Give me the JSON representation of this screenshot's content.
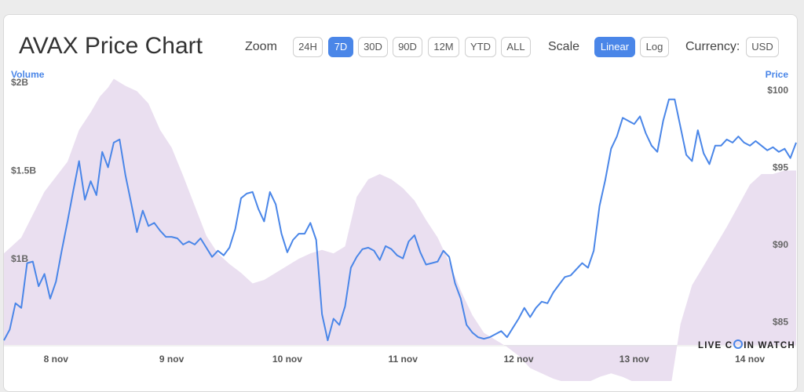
{
  "header": {
    "title": "AVAX Price Chart",
    "zoom_label": "Zoom",
    "zoom_options": [
      "24H",
      "7D",
      "30D",
      "90D",
      "12M",
      "YTD",
      "ALL"
    ],
    "zoom_selected": "7D",
    "scale_label": "Scale",
    "scale_options": [
      "Linear",
      "Log"
    ],
    "scale_selected": "Linear",
    "currency_label": "Currency:",
    "currency_value": "USD"
  },
  "watermark": {
    "before": "LIVE C",
    "after": "IN WATCH"
  },
  "colors": {
    "price_line": "#4a86e8",
    "volume_area": "#eadff0",
    "axis_title": "#4a86e8"
  },
  "chart_data": {
    "type": "line",
    "x_ticks": [
      "8 nov",
      "9 nov",
      "10 nov",
      "11 nov",
      "12 nov",
      "13 nov",
      "14 nov"
    ],
    "y_left": {
      "title": "Volume",
      "ticks": [
        "$2B",
        "$1.5B",
        "$1B"
      ],
      "tick_values": [
        2000000000,
        1500000000,
        1000000000
      ]
    },
    "y_right": {
      "title": "Price",
      "ticks": [
        "$100",
        "$95",
        "$90",
        "$85"
      ],
      "tick_values": [
        100,
        95,
        90,
        85
      ],
      "range": [
        83.5,
        100.5
      ]
    },
    "x_range": [
      -0.45,
      6.4
    ],
    "series": [
      {
        "series_type": "area",
        "axis": "left",
        "x": [
          -0.45,
          -0.3,
          -0.1,
          0.1,
          0.2,
          0.3,
          0.38,
          0.45,
          0.5,
          0.6,
          0.7,
          0.8,
          0.9,
          1.0,
          1.1,
          1.2,
          1.3,
          1.4,
          1.5,
          1.6,
          1.7,
          1.8,
          1.9,
          2.0,
          2.1,
          2.2,
          2.3,
          2.4,
          2.5,
          2.6,
          2.7,
          2.8,
          2.9,
          3.0,
          3.1,
          3.2,
          3.3,
          3.4,
          3.5,
          3.6,
          3.7,
          3.8,
          3.9,
          4.0,
          4.1,
          4.2,
          4.3,
          4.4,
          4.5,
          4.6,
          4.7,
          4.8,
          4.9,
          5.0,
          5.1,
          5.2,
          5.3,
          5.4,
          5.5,
          5.6,
          5.7,
          5.8,
          5.9,
          6.0,
          6.1,
          6.2,
          6.3,
          6.4
        ],
        "y": [
          1.03,
          1.12,
          1.38,
          1.55,
          1.73,
          1.83,
          1.92,
          1.97,
          2.02,
          1.98,
          1.95,
          1.88,
          1.73,
          1.63,
          1.47,
          1.3,
          1.13,
          1.03,
          0.97,
          0.92,
          0.86,
          0.88,
          0.92,
          0.96,
          1.0,
          1.03,
          1.05,
          1.03,
          1.07,
          1.35,
          1.45,
          1.48,
          1.45,
          1.4,
          1.33,
          1.22,
          1.12,
          0.98,
          0.82,
          0.68,
          0.58,
          0.54,
          0.5,
          0.45,
          0.38,
          0.35,
          0.32,
          0.3,
          0.3,
          0.3,
          0.33,
          0.35,
          0.33,
          0.3,
          0.25,
          0.22,
          0.21,
          0.63,
          0.85,
          0.96,
          1.07,
          1.18,
          1.3,
          1.42,
          1.48,
          1.48,
          1.5,
          1.5
        ]
      },
      {
        "series_type": "line",
        "axis": "right",
        "name": "Price",
        "x": [
          -0.45,
          -0.4,
          -0.35,
          -0.3,
          -0.25,
          -0.2,
          -0.15,
          -0.1,
          -0.05,
          0.0,
          0.05,
          0.1,
          0.15,
          0.2,
          0.25,
          0.3,
          0.35,
          0.4,
          0.45,
          0.5,
          0.55,
          0.6,
          0.65,
          0.7,
          0.75,
          0.8,
          0.85,
          0.9,
          0.95,
          1.0,
          1.05,
          1.1,
          1.15,
          1.2,
          1.25,
          1.3,
          1.35,
          1.4,
          1.45,
          1.5,
          1.55,
          1.6,
          1.65,
          1.7,
          1.75,
          1.8,
          1.85,
          1.9,
          1.95,
          2.0,
          2.05,
          2.1,
          2.15,
          2.2,
          2.25,
          2.3,
          2.35,
          2.4,
          2.45,
          2.5,
          2.55,
          2.6,
          2.65,
          2.7,
          2.75,
          2.8,
          2.85,
          2.9,
          2.95,
          3.0,
          3.05,
          3.1,
          3.15,
          3.2,
          3.25,
          3.3,
          3.35,
          3.4,
          3.45,
          3.5,
          3.55,
          3.6,
          3.65,
          3.7,
          3.75,
          3.8,
          3.85,
          3.9,
          3.95,
          4.0,
          4.05,
          4.1,
          4.15,
          4.2,
          4.25,
          4.3,
          4.35,
          4.4,
          4.45,
          4.5,
          4.55,
          4.6,
          4.65,
          4.7,
          4.75,
          4.8,
          4.85,
          4.9,
          4.95,
          5.0,
          5.05,
          5.1,
          5.15,
          5.2,
          5.25,
          5.3,
          5.35,
          5.4,
          5.45,
          5.5,
          5.55,
          5.6,
          5.65,
          5.7,
          5.75,
          5.8,
          5.85,
          5.9,
          5.95,
          6.0,
          6.05,
          6.1,
          6.15,
          6.2,
          6.25,
          6.3,
          6.35,
          6.4
        ],
        "y": [
          83.8,
          84.5,
          86.2,
          85.9,
          88.8,
          88.9,
          87.3,
          88.1,
          86.5,
          87.6,
          89.6,
          91.5,
          93.5,
          95.4,
          92.9,
          94.1,
          93.2,
          96.0,
          95.0,
          96.6,
          96.8,
          94.5,
          92.7,
          90.8,
          92.2,
          91.2,
          91.4,
          90.9,
          90.5,
          90.5,
          90.4,
          90.0,
          90.2,
          90.0,
          90.4,
          89.8,
          89.2,
          89.6,
          89.3,
          89.8,
          91.0,
          93.0,
          93.3,
          93.4,
          92.3,
          91.5,
          93.4,
          92.6,
          90.7,
          89.5,
          90.3,
          90.7,
          90.7,
          91.4,
          90.3,
          85.5,
          83.8,
          85.2,
          84.8,
          86.0,
          88.5,
          89.2,
          89.7,
          89.8,
          89.6,
          89.0,
          89.9,
          89.7,
          89.3,
          89.1,
          90.2,
          90.6,
          89.5,
          88.7,
          88.8,
          88.9,
          89.6,
          89.2,
          87.5,
          86.5,
          84.8,
          84.3,
          84.0,
          83.9,
          84.0,
          84.2,
          84.4,
          84.0,
          84.6,
          85.2,
          85.9,
          85.3,
          85.9,
          86.3,
          86.2,
          86.9,
          87.4,
          87.9,
          88.0,
          88.4,
          88.8,
          88.5,
          89.6,
          92.5,
          94.2,
          96.2,
          97.0,
          98.2,
          98.0,
          97.8,
          98.3,
          97.2,
          96.4,
          96.0,
          98.0,
          99.4,
          99.4,
          97.6,
          95.8,
          95.4,
          97.4,
          95.9,
          95.2,
          96.4,
          96.4,
          96.8,
          96.6,
          97.0,
          96.6,
          96.4,
          96.7,
          96.4,
          96.1,
          96.3,
          96.0,
          96.2,
          95.6,
          96.6
        ]
      }
    ]
  }
}
